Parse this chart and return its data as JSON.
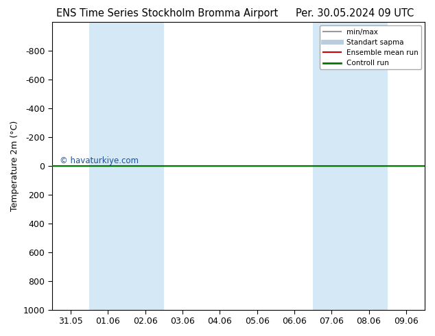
{
  "title_left": "ENS Time Series Stockholm Bromma Airport",
  "title_right": "Per. 30.05.2024 09 UTC",
  "ylabel": "Temperature 2m (°C)",
  "ylim_bottom": 1000,
  "ylim_top": -1000,
  "yticks": [
    -800,
    -600,
    -400,
    -200,
    0,
    200,
    400,
    600,
    800,
    1000
  ],
  "xtick_labels": [
    "31.05",
    "01.06",
    "02.06",
    "03.06",
    "04.06",
    "05.06",
    "06.06",
    "07.06",
    "08.06",
    "09.06"
  ],
  "shaded_bands": [
    {
      "xmin": 1,
      "xmax": 3
    },
    {
      "xmin": 7,
      "xmax": 9
    }
  ],
  "green_line_y": 0,
  "red_line_y": 0,
  "watermark": "© havaturkiye.com",
  "watermark_color": "#1a50a0",
  "legend_items": [
    {
      "label": "min/max",
      "color": "#999999",
      "lw": 1.5
    },
    {
      "label": "Standart sapma",
      "color": "#bbccdd",
      "lw": 5
    },
    {
      "label": "Ensemble mean run",
      "color": "#cc0000",
      "lw": 1.5
    },
    {
      "label": "Controll run",
      "color": "#007700",
      "lw": 2
    }
  ],
  "background_color": "#ffffff",
  "plot_bg_color": "#ffffff",
  "band_color": "#d4e8f5",
  "title_fontsize": 10.5,
  "axis_fontsize": 9,
  "tick_fontsize": 9
}
